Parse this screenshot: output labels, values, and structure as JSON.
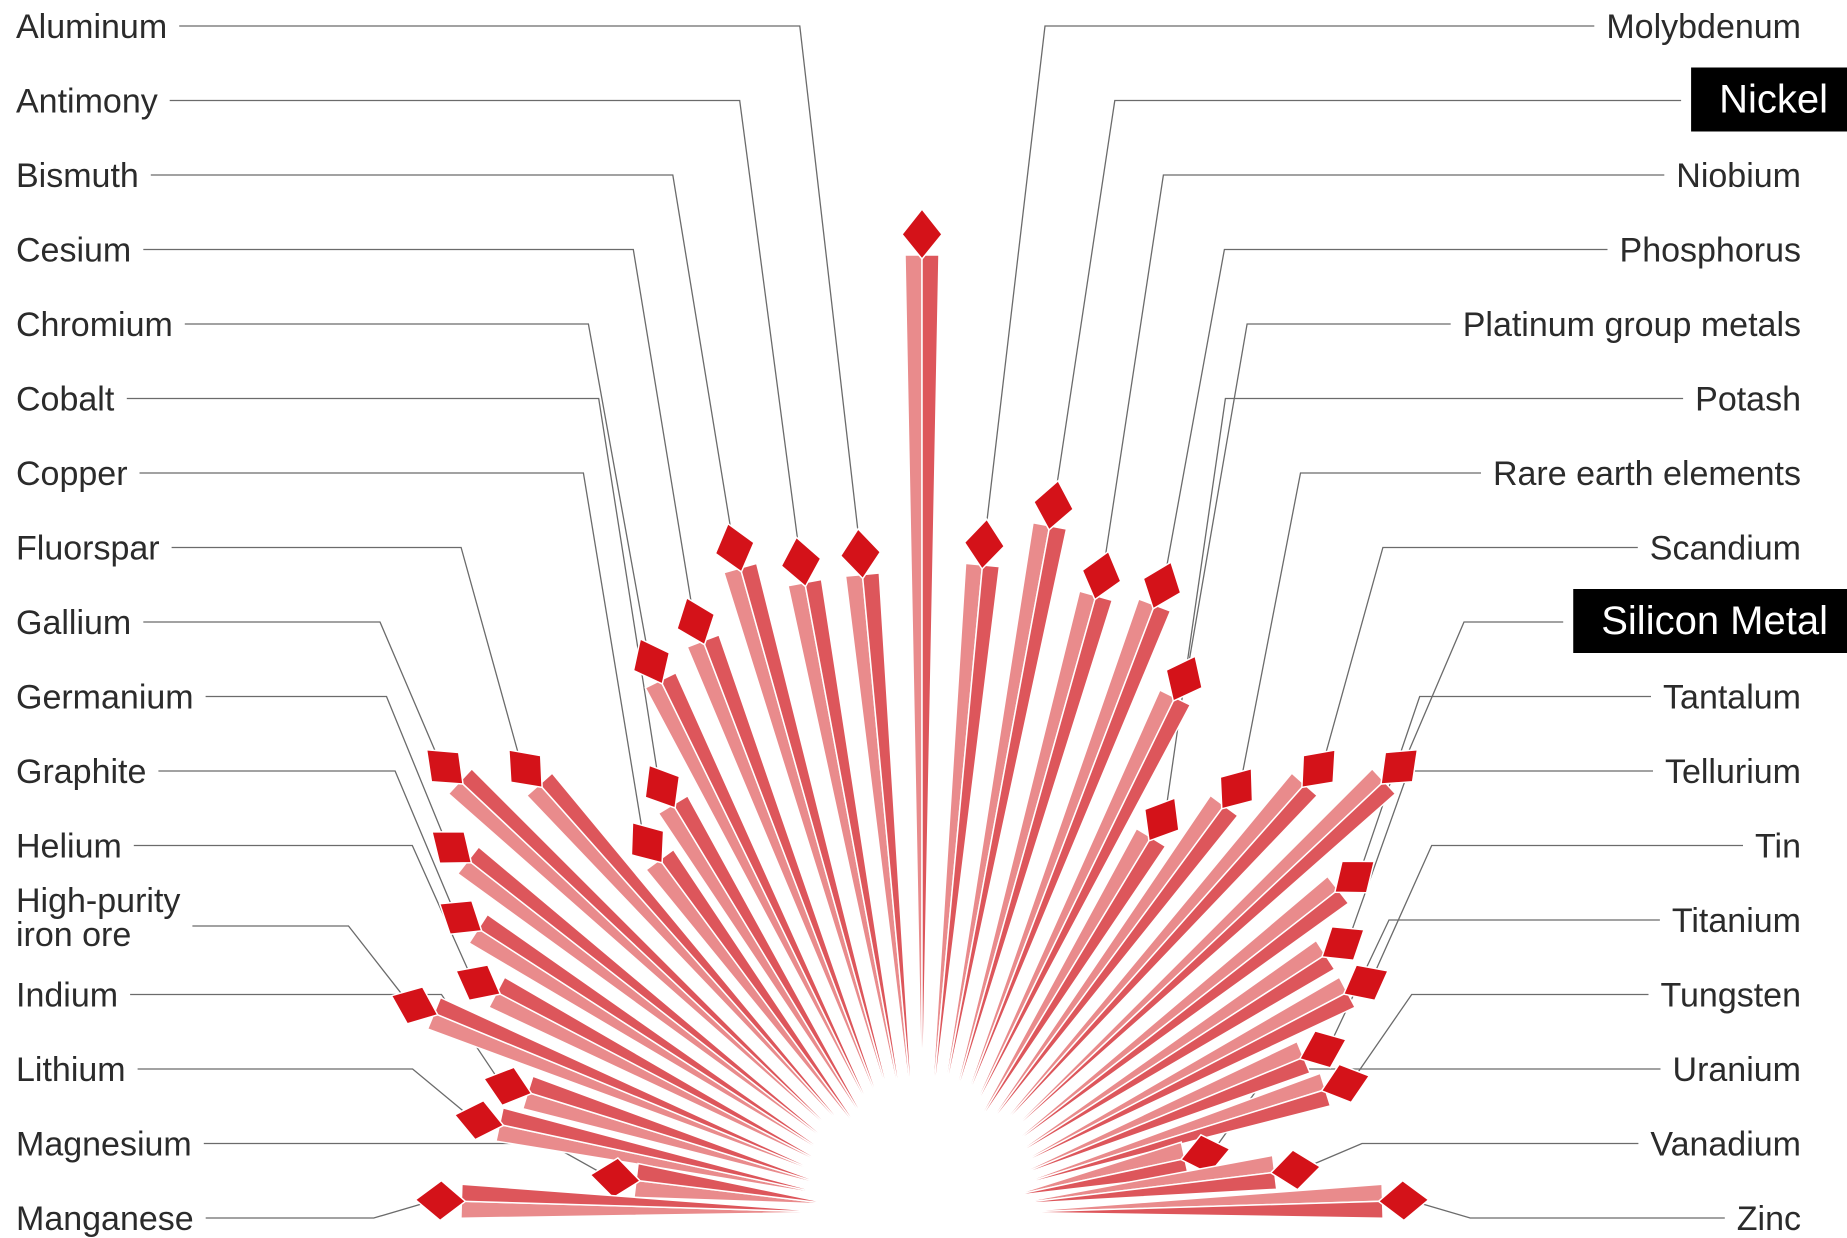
{
  "minerals_left": [
    {
      "label": "Aluminum",
      "length": 0.67
    },
    {
      "label": "Antimony",
      "length": 0.67
    },
    {
      "label": "Bismuth",
      "length": 0.7
    },
    {
      "label": "Cesium",
      "length": 0.64
    },
    {
      "label": "Chromium",
      "length": 0.62
    },
    {
      "label": "Cobalt",
      "length": 0.5
    },
    {
      "label": "Copper",
      "length": 0.46
    },
    {
      "label": "Fluorspar",
      "length": 0.6
    },
    {
      "label": "Gallium",
      "length": 0.66
    },
    {
      "label": "Germanium",
      "length": 0.6
    },
    {
      "label": "Graphite",
      "length": 0.55
    },
    {
      "label": "Helium",
      "length": 0.5
    },
    {
      "label": "High-purity iron ore",
      "length": 0.55
    },
    {
      "label": "Indium",
      "length": 0.43
    },
    {
      "label": "Lithium",
      "length": 0.45
    },
    {
      "label": "Magnesium",
      "length": 0.3
    },
    {
      "label": "Manganese",
      "length": 0.48
    }
  ],
  "minerals_right": [
    {
      "label": "Molybdenum",
      "length": 0.68
    },
    {
      "label": "Nickel",
      "length": 0.73,
      "highlight": true
    },
    {
      "label": "Niobium",
      "length": 0.67
    },
    {
      "label": "Phosphorus",
      "length": 0.68
    },
    {
      "label": "Platinum group metals",
      "length": 0.6
    },
    {
      "label": "Potash",
      "length": 0.46
    },
    {
      "label": "Rare earth elements",
      "length": 0.53
    },
    {
      "label": "Scandium",
      "length": 0.6
    },
    {
      "label": "Silicon Metal",
      "length": 0.66,
      "highlight": true
    },
    {
      "label": "Tantalum",
      "length": 0.55
    },
    {
      "label": "Tellurium",
      "length": 0.5
    },
    {
      "label": "Tin",
      "length": 0.5
    },
    {
      "label": "Titanium",
      "length": 0.43
    },
    {
      "label": "Tungsten",
      "length": 0.44
    },
    {
      "label": "Uranium",
      "length": 0.28
    },
    {
      "label": "Vanadium",
      "length": 0.37
    },
    {
      "label": "Zinc",
      "length": 0.48
    }
  ],
  "center_mineral": {
    "length": 1.0
  },
  "colors": {
    "light": "#e98b8c",
    "dark": "#dd565b",
    "tip": "#d41219",
    "leader": "#6b6b6b",
    "text": "#2b2b2b",
    "highlight_bg": "#000000",
    "highlight_text": "#ffffff"
  }
}
